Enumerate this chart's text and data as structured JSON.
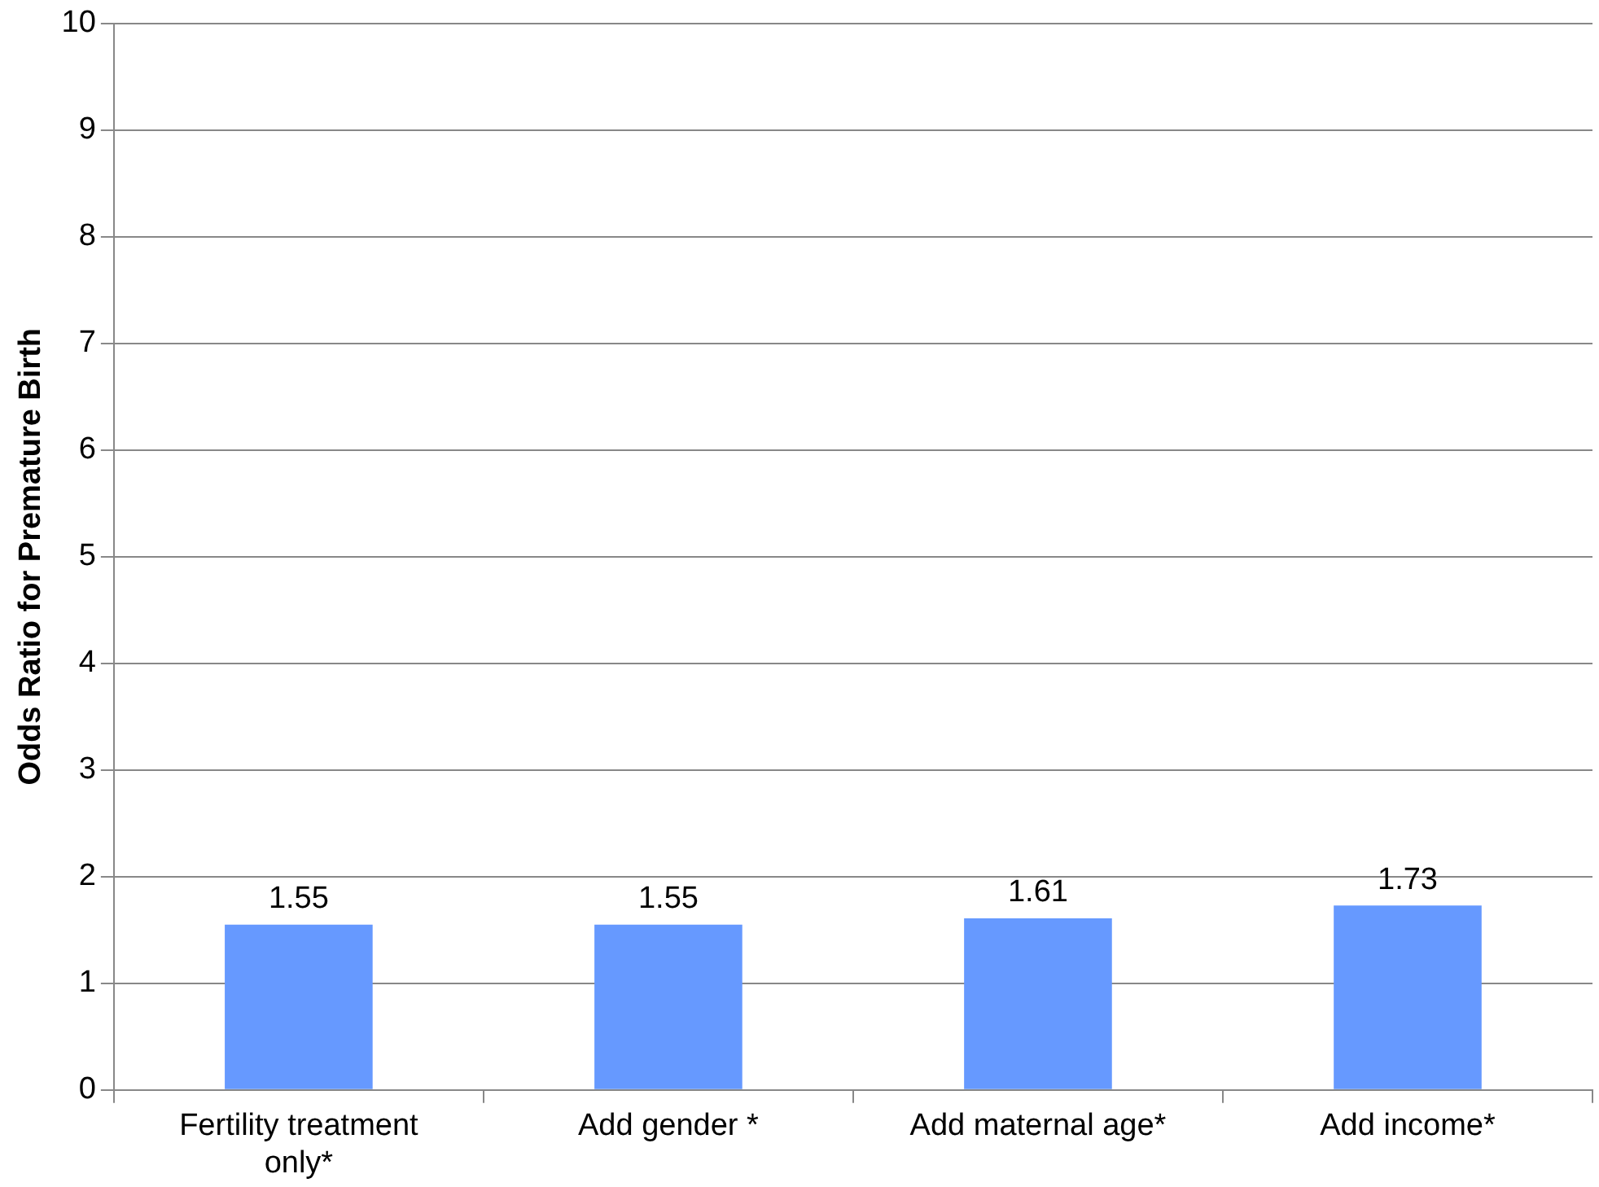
{
  "chart_data": {
    "type": "bar",
    "ylabel": "Odds Ratio for Premature Birth",
    "categories": [
      "Fertility treatment only*",
      "Add gender *",
      "Add maternal age*",
      "Add income*"
    ],
    "values": [
      1.55,
      1.55,
      1.61,
      1.73
    ],
    "color": "#6699ff",
    "ylim": [
      0,
      10
    ],
    "yticks": [
      0,
      1,
      2,
      3,
      4,
      5,
      6,
      7,
      8,
      9,
      10
    ],
    "grid": "y",
    "data_labels": true,
    "legend": false
  }
}
